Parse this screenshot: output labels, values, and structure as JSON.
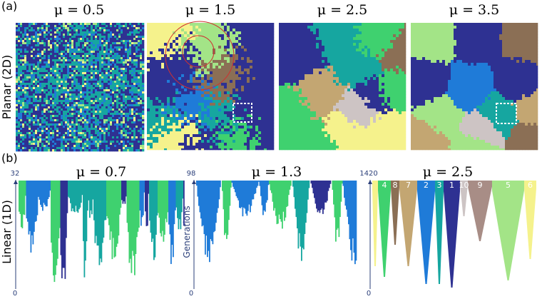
{
  "panel_a": {
    "label": "(a)",
    "row_label": "Planar (2D)",
    "titles": [
      "μ = 0.5",
      "μ = 1.5",
      "μ = 2.5",
      "μ = 3.5"
    ]
  },
  "panel_b": {
    "label": "(b)",
    "row_label": "Linear (1D)",
    "axis_label": "Generations",
    "plots": [
      {
        "title": "μ = 0.7",
        "top": "32",
        "bottom": "0"
      },
      {
        "title": "μ = 1.3",
        "top": "98",
        "bottom": "0"
      },
      {
        "title": "μ = 2.5",
        "top": "1420",
        "bottom": "0"
      }
    ],
    "lineage_labels": [
      "4",
      "8",
      "7",
      "2",
      "3",
      "1",
      "10",
      "9",
      "5",
      "6"
    ]
  }
}
